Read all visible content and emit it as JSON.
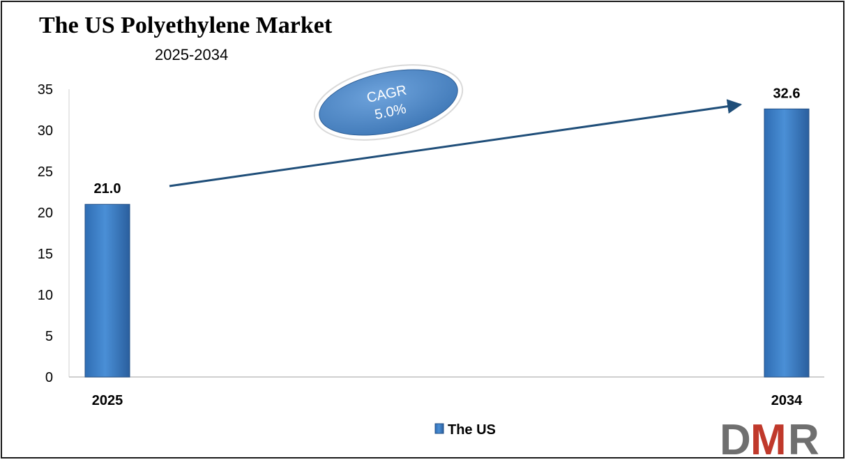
{
  "chart_data": {
    "type": "bar",
    "title": "The US Polyethylene Market",
    "subtitle": "2025-2034",
    "categories": [
      "2025",
      "2034"
    ],
    "series": [
      {
        "name": "The US",
        "values": [
          21.0,
          32.6
        ],
        "labels": [
          "21.0",
          "32.6"
        ]
      }
    ],
    "ylim": [
      0,
      35
    ],
    "yticks": [
      "0",
      "5",
      "10",
      "15",
      "20",
      "25",
      "30",
      "35"
    ],
    "xlabel": "",
    "ylabel": "",
    "grid": false,
    "legend": "bottom-center",
    "annotation": {
      "line1": "CAGR",
      "line2": "5.0%"
    }
  },
  "colors": {
    "bar": "#3a7dc6",
    "bar_edge": "#234f85",
    "arrow": "#1f4e79",
    "ellipse": "#4f88c6",
    "logo_gray": "#6f6f6f",
    "logo_red": "#c0392b"
  },
  "logo": {
    "text": "DMR"
  }
}
